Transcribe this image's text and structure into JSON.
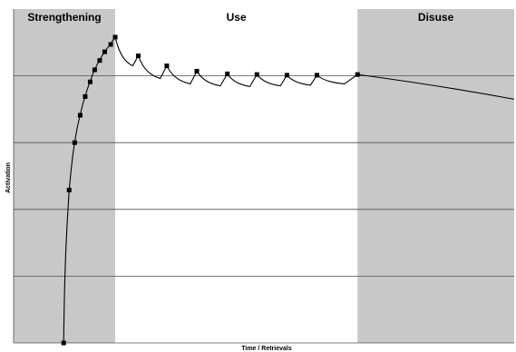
{
  "chart_data": {
    "type": "line",
    "title": "",
    "xlabel": "Time / Retrievals",
    "ylabel": "Activation",
    "xlim": [
      0,
      100
    ],
    "ylim": [
      0,
      5
    ],
    "grid": {
      "horizontal": true,
      "vertical": false
    },
    "x_ticks_shown": false,
    "y_ticks_shown": false,
    "phases": [
      {
        "name": "Strengthening",
        "x_start": 0,
        "x_end": 20.3,
        "shading": "gray"
      },
      {
        "name": "Use",
        "x_start": 20.3,
        "x_end": 68.7,
        "shading": "white"
      },
      {
        "name": "Disuse",
        "x_start": 68.7,
        "x_end": 100,
        "shading": "gray"
      }
    ],
    "series": [
      {
        "marker": "square",
        "retrieval_points": [
          {
            "x": 10.0,
            "y": 0.0
          },
          {
            "x": 11.1,
            "y": 2.29
          },
          {
            "x": 12.2,
            "y": 3.0
          },
          {
            "x": 13.3,
            "y": 3.41
          },
          {
            "x": 14.3,
            "y": 3.69
          },
          {
            "x": 15.3,
            "y": 3.91
          },
          {
            "x": 16.2,
            "y": 4.09
          },
          {
            "x": 17.2,
            "y": 4.23
          },
          {
            "x": 18.2,
            "y": 4.36
          },
          {
            "x": 19.4,
            "y": 4.47
          },
          {
            "x": 20.3,
            "y": 4.58
          },
          {
            "x": 24.9,
            "y": 4.3
          },
          {
            "x": 30.6,
            "y": 4.15
          },
          {
            "x": 36.6,
            "y": 4.07
          },
          {
            "x": 42.7,
            "y": 4.03
          },
          {
            "x": 48.6,
            "y": 4.02
          },
          {
            "x": 54.6,
            "y": 4.01
          },
          {
            "x": 60.6,
            "y": 4.01
          },
          {
            "x": 68.7,
            "y": 4.02
          }
        ],
        "pre_retrieval_lows": [
          {
            "x": 23.8,
            "y": 4.15
          },
          {
            "x": 29.3,
            "y": 3.96
          },
          {
            "x": 35.3,
            "y": 3.88
          },
          {
            "x": 41.3,
            "y": 3.85
          },
          {
            "x": 47.2,
            "y": 3.84
          },
          {
            "x": 53.3,
            "y": 3.85
          },
          {
            "x": 59.3,
            "y": 3.86
          },
          {
            "x": 66.1,
            "y": 3.88
          }
        ],
        "final_decay_point": {
          "x": 100,
          "y": 3.65
        }
      }
    ]
  },
  "header": {
    "strengthening_label": "Strengthening",
    "use_label": "Use",
    "disuse_label": "Disuse"
  },
  "axes": {
    "y_label": "Activation",
    "x_label": "Time / Retrievals"
  },
  "colors": {
    "phase_shade": "#c8c8c8",
    "gridline": "#505050",
    "curve": "#000000",
    "marker": "#000000",
    "background": "#ffffff"
  }
}
